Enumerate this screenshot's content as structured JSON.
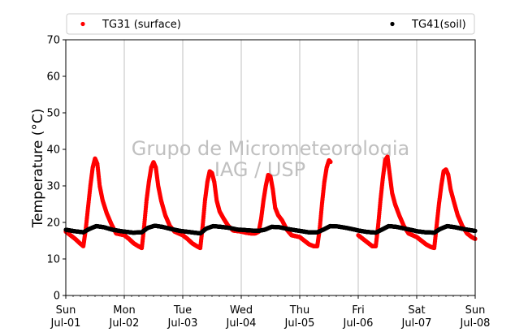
{
  "chart_data": {
    "type": "scatter",
    "title": "",
    "ylabel": "Temperature (°C)",
    "xlabel": "",
    "ylim": [
      0,
      70
    ],
    "xlim": [
      0,
      7
    ],
    "yticks": [
      0,
      10,
      20,
      30,
      40,
      50,
      60,
      70
    ],
    "xticks": [
      {
        "x": 0,
        "day": "Sun",
        "date": "Jul-01"
      },
      {
        "x": 1,
        "day": "Mon",
        "date": "Jul-02"
      },
      {
        "x": 2,
        "day": "Tue",
        "date": "Jul-03"
      },
      {
        "x": 3,
        "day": "Wed",
        "date": "Jul-04"
      },
      {
        "x": 4,
        "day": "Thu",
        "date": "Jul-05"
      },
      {
        "x": 5,
        "day": "Fri",
        "date": "Jul-06"
      },
      {
        "x": 6,
        "day": "Sat",
        "date": "Jul-07"
      },
      {
        "x": 7,
        "day": "Sun",
        "date": "Jul-08"
      }
    ],
    "grid": "vertical",
    "legend_placement": "top",
    "watermark": [
      "Grupo de Micrometeorologia",
      "IAG / USP"
    ],
    "series": [
      {
        "name": "TG31 (surface)",
        "color": "#ff0000",
        "points": [
          [
            0.0,
            17.5
          ],
          [
            0.08,
            16.5
          ],
          [
            0.16,
            15.5
          ],
          [
            0.24,
            14.3
          ],
          [
            0.3,
            13.5
          ],
          [
            0.34,
            18.0
          ],
          [
            0.38,
            24.0
          ],
          [
            0.42,
            30.0
          ],
          [
            0.46,
            35.0
          ],
          [
            0.5,
            37.5
          ],
          [
            0.54,
            36.0
          ],
          [
            0.58,
            30.0
          ],
          [
            0.63,
            26.0
          ],
          [
            0.7,
            22.5
          ],
          [
            0.78,
            19.5
          ],
          [
            0.86,
            17.0
          ],
          [
            1.0,
            16.5
          ],
          [
            1.08,
            15.5
          ],
          [
            1.16,
            14.3
          ],
          [
            1.24,
            13.5
          ],
          [
            1.3,
            13.0
          ],
          [
            1.34,
            19.0
          ],
          [
            1.38,
            26.0
          ],
          [
            1.42,
            31.0
          ],
          [
            1.46,
            35.0
          ],
          [
            1.5,
            36.5
          ],
          [
            1.54,
            35.0
          ],
          [
            1.58,
            30.0
          ],
          [
            1.63,
            26.0
          ],
          [
            1.7,
            22.0
          ],
          [
            1.78,
            19.0
          ],
          [
            1.86,
            17.5
          ],
          [
            2.0,
            16.5
          ],
          [
            2.08,
            15.5
          ],
          [
            2.16,
            14.3
          ],
          [
            2.24,
            13.5
          ],
          [
            2.3,
            13.0
          ],
          [
            2.34,
            19.0
          ],
          [
            2.38,
            26.0
          ],
          [
            2.42,
            31.0
          ],
          [
            2.46,
            34.0
          ],
          [
            2.5,
            33.5
          ],
          [
            2.54,
            31.0
          ],
          [
            2.58,
            26.0
          ],
          [
            2.63,
            23.0
          ],
          [
            2.7,
            21.0
          ],
          [
            2.78,
            19.0
          ],
          [
            2.86,
            17.8
          ],
          [
            3.0,
            17.5
          ],
          [
            3.08,
            17.2
          ],
          [
            3.16,
            17.0
          ],
          [
            3.24,
            17.0
          ],
          [
            3.3,
            17.5
          ],
          [
            3.34,
            21.0
          ],
          [
            3.38,
            26.0
          ],
          [
            3.42,
            30.0
          ],
          [
            3.46,
            33.0
          ],
          [
            3.5,
            32.5
          ],
          [
            3.54,
            29.0
          ],
          [
            3.58,
            24.0
          ],
          [
            3.63,
            22.0
          ],
          [
            3.7,
            20.5
          ],
          [
            3.78,
            18.0
          ],
          [
            3.86,
            16.5
          ],
          [
            4.0,
            16.0
          ],
          [
            4.08,
            15.0
          ],
          [
            4.16,
            14.0
          ],
          [
            4.24,
            13.5
          ],
          [
            4.3,
            13.5
          ],
          [
            4.34,
            18.0
          ],
          [
            4.38,
            25.0
          ],
          [
            4.42,
            31.0
          ],
          [
            4.46,
            35.0
          ],
          [
            4.5,
            37.0
          ],
          [
            4.53,
            36.5
          ],
          [
            5.0,
            16.5
          ],
          [
            5.08,
            15.5
          ],
          [
            5.16,
            14.5
          ],
          [
            5.24,
            13.5
          ],
          [
            5.3,
            13.5
          ],
          [
            5.34,
            19.0
          ],
          [
            5.38,
            26.0
          ],
          [
            5.42,
            32.0
          ],
          [
            5.46,
            37.0
          ],
          [
            5.5,
            38.0
          ],
          [
            5.54,
            33.0
          ],
          [
            5.58,
            28.0
          ],
          [
            5.63,
            25.0
          ],
          [
            5.7,
            22.0
          ],
          [
            5.78,
            19.0
          ],
          [
            5.86,
            17.0
          ],
          [
            6.0,
            16.0
          ],
          [
            6.08,
            15.0
          ],
          [
            6.16,
            14.0
          ],
          [
            6.24,
            13.3
          ],
          [
            6.3,
            13.0
          ],
          [
            6.34,
            19.0
          ],
          [
            6.38,
            25.0
          ],
          [
            6.42,
            30.0
          ],
          [
            6.46,
            34.0
          ],
          [
            6.5,
            34.5
          ],
          [
            6.54,
            33.0
          ],
          [
            6.58,
            29.0
          ],
          [
            6.63,
            26.0
          ],
          [
            6.7,
            22.0
          ],
          [
            6.78,
            19.0
          ],
          [
            6.86,
            17.0
          ],
          [
            6.94,
            16.0
          ],
          [
            7.0,
            15.5
          ]
        ]
      },
      {
        "name": "TG41(soil)",
        "color": "#000000",
        "points": [
          [
            0.0,
            18.0
          ],
          [
            0.15,
            17.6
          ],
          [
            0.3,
            17.3
          ],
          [
            0.4,
            18.2
          ],
          [
            0.52,
            19.0
          ],
          [
            0.65,
            18.7
          ],
          [
            0.8,
            18.0
          ],
          [
            0.95,
            17.6
          ],
          [
            1.0,
            17.5
          ],
          [
            1.15,
            17.2
          ],
          [
            1.3,
            17.3
          ],
          [
            1.4,
            18.5
          ],
          [
            1.52,
            19.1
          ],
          [
            1.65,
            18.8
          ],
          [
            1.8,
            18.2
          ],
          [
            1.95,
            17.7
          ],
          [
            2.0,
            17.6
          ],
          [
            2.15,
            17.3
          ],
          [
            2.3,
            17.0
          ],
          [
            2.4,
            18.3
          ],
          [
            2.52,
            19.0
          ],
          [
            2.65,
            18.8
          ],
          [
            2.8,
            18.5
          ],
          [
            2.95,
            18.0
          ],
          [
            3.0,
            18.0
          ],
          [
            3.15,
            17.8
          ],
          [
            3.3,
            17.7
          ],
          [
            3.4,
            18.0
          ],
          [
            3.52,
            18.8
          ],
          [
            3.65,
            18.7
          ],
          [
            3.8,
            18.2
          ],
          [
            3.95,
            17.8
          ],
          [
            4.0,
            17.7
          ],
          [
            4.15,
            17.3
          ],
          [
            4.3,
            17.3
          ],
          [
            4.4,
            18.0
          ],
          [
            4.52,
            19.0
          ],
          [
            4.65,
            18.9
          ],
          [
            4.8,
            18.5
          ],
          [
            4.95,
            18.0
          ],
          [
            5.0,
            17.8
          ],
          [
            5.15,
            17.4
          ],
          [
            5.3,
            17.2
          ],
          [
            5.4,
            18.0
          ],
          [
            5.52,
            19.0
          ],
          [
            5.65,
            18.8
          ],
          [
            5.8,
            18.3
          ],
          [
            5.95,
            17.8
          ],
          [
            6.0,
            17.6
          ],
          [
            6.15,
            17.3
          ],
          [
            6.3,
            17.2
          ],
          [
            6.4,
            18.2
          ],
          [
            6.52,
            19.0
          ],
          [
            6.65,
            18.7
          ],
          [
            6.8,
            18.2
          ],
          [
            6.95,
            17.8
          ],
          [
            7.0,
            17.7
          ]
        ]
      }
    ]
  }
}
